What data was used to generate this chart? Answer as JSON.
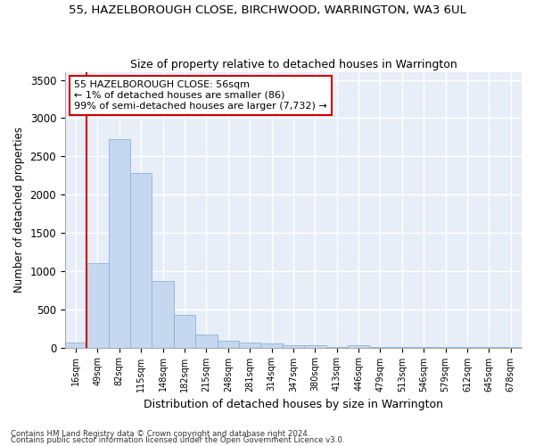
{
  "title": "55, HAZELBOROUGH CLOSE, BIRCHWOOD, WARRINGTON, WA3 6UL",
  "subtitle": "Size of property relative to detached houses in Warrington",
  "xlabel": "Distribution of detached houses by size in Warrington",
  "ylabel": "Number of detached properties",
  "bar_color": "#c5d8f0",
  "bar_edge_color": "#8ab4d9",
  "background_color": "#e8eef8",
  "grid_color": "#ffffff",
  "categories": [
    "16sqm",
    "49sqm",
    "82sqm",
    "115sqm",
    "148sqm",
    "182sqm",
    "215sqm",
    "248sqm",
    "281sqm",
    "314sqm",
    "347sqm",
    "380sqm",
    "413sqm",
    "446sqm",
    "479sqm",
    "513sqm",
    "546sqm",
    "579sqm",
    "612sqm",
    "645sqm",
    "678sqm"
  ],
  "values": [
    60,
    1100,
    2720,
    2280,
    870,
    430,
    170,
    90,
    60,
    50,
    35,
    25,
    5,
    25,
    5,
    5,
    5,
    5,
    5,
    5,
    5
  ],
  "ylim": [
    0,
    3600
  ],
  "yticks": [
    0,
    500,
    1000,
    1500,
    2000,
    2500,
    3000,
    3500
  ],
  "property_line_x": 0.5,
  "annotation_title": "55 HAZELBOROUGH CLOSE: 56sqm",
  "annotation_line1": "← 1% of detached houses are smaller (86)",
  "annotation_line2": "99% of semi-detached houses are larger (7,732) →",
  "annotation_box_color": "#ffffff",
  "annotation_border_color": "#cc0000",
  "property_line_color": "#cc0000",
  "footer1": "Contains HM Land Registry data © Crown copyright and database right 2024.",
  "footer2": "Contains public sector information licensed under the Open Government Licence v3.0."
}
